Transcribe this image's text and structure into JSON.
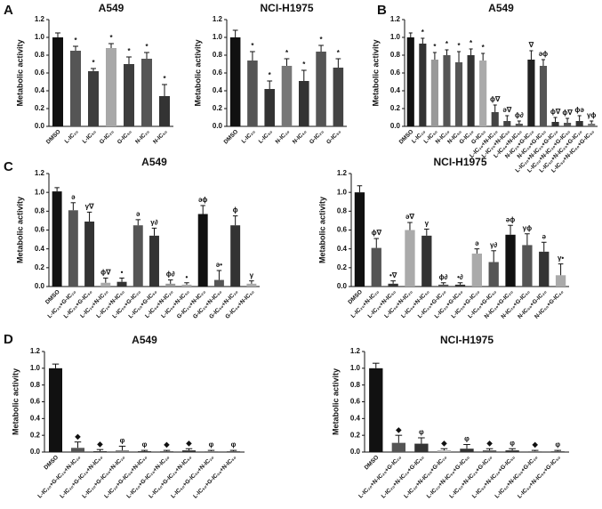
{
  "panel_labels": [
    "A",
    "B",
    "C",
    "D"
  ],
  "chart_data": [
    {
      "type": "bar",
      "title": "A549",
      "ylabel": "Metabolic activity",
      "categories": [
        "DMSO",
        "L-IC₂₀",
        "L-IC₅₀",
        "G-IC₂₀",
        "G-IC₅₀",
        "N-IC₂₀",
        "N-IC₅₀"
      ],
      "values": [
        1.0,
        0.85,
        0.62,
        0.88,
        0.7,
        0.76,
        0.34
      ],
      "errors": [
        0.05,
        0.05,
        0.03,
        0.05,
        0.08,
        0.07,
        0.13
      ],
      "colors": [
        "#111111",
        "#555555",
        "#3d3d3d",
        "#a8a8a8",
        "#3d3d3d",
        "#555555",
        "#333333"
      ],
      "annotations": [
        null,
        "*",
        "*",
        "*",
        "*",
        "*",
        "*"
      ],
      "ylim": [
        0,
        1.2
      ],
      "yticks": [
        {
          "value": 0,
          "label": "0.0"
        },
        0.2,
        0.4,
        0.6,
        0.8,
        {
          "value": 1,
          "label": "1.0"
        },
        1.2
      ]
    },
    {
      "type": "bar",
      "title": "NCI-H1975",
      "ylabel": "Metabolic activity",
      "categories": [
        "DMSO",
        "L-IC₂₀",
        "L-IC₅₀",
        "N-IC₂₀",
        "N-IC₅₀",
        "G-IC₂₀",
        "G-IC₅₀"
      ],
      "values": [
        1.0,
        0.74,
        0.42,
        0.68,
        0.51,
        0.84,
        0.66
      ],
      "errors": [
        0.08,
        0.1,
        0.09,
        0.08,
        0.12,
        0.07,
        0.1
      ],
      "colors": [
        "#111111",
        "#555555",
        "#333333",
        "#777777",
        "#333333",
        "#555555",
        "#444444"
      ],
      "annotations": [
        null,
        "*",
        "*",
        "*",
        "*",
        "*",
        "*"
      ],
      "ylim": [
        0,
        1.2
      ],
      "yticks": [
        {
          "value": 0,
          "label": "0.0"
        },
        0.2,
        0.4,
        0.6,
        0.8,
        {
          "value": 1,
          "label": "1.0"
        },
        1.2
      ]
    },
    {
      "type": "bar",
      "title": "A549",
      "ylabel": "Metabolic activity",
      "categories": [
        "DMSO",
        "L-IC₂₀",
        "L-IC₅₀",
        "N-IC₂₀",
        "N-IC₅₀",
        "G-IC₂₀",
        "G-IC₅₀",
        "L-IC₂₀+N-IC₂₀",
        "L-IC₂₀+N-IC₅₀",
        "L-IC₅₀+N-IC₅₀",
        "N-IC₂₀+G-IC₂₀",
        "N-IC₂₀+G-IC₅₀",
        "L-IC₂₀+N-IC₂₀+G-IC₂₀",
        "L-IC₂₀+N-IC₂₀+G-IC₅₀",
        "L-IC₅₀+N-IC₂₀+G-IC₂₀",
        "L-IC₅₀+N-IC₅₀+G-IC₅₀"
      ],
      "values": [
        1.0,
        0.93,
        0.75,
        0.8,
        0.72,
        0.8,
        0.74,
        0.16,
        0.06,
        0.03,
        0.75,
        0.68,
        0.05,
        0.04,
        0.06,
        0.03
      ],
      "errors": [
        0.05,
        0.06,
        0.08,
        0.06,
        0.12,
        0.07,
        0.08,
        0.08,
        0.06,
        0.03,
        0.1,
        0.07,
        0.05,
        0.05,
        0.06,
        0.03
      ],
      "colors": [
        "#111111",
        "#333333",
        "#999999",
        "#555555",
        "#555555",
        "#333333",
        "#aaaaaa",
        "#444444",
        "#444444",
        "#555555",
        "#222222",
        "#555555",
        "#333333",
        "#555555",
        "#333333",
        "#777777"
      ],
      "annotations": [
        null,
        "*",
        "*",
        "*",
        "*",
        "*",
        "*",
        "ϕ∇",
        "ə∇",
        "ϕ∂",
        "∇",
        "əϕ",
        "ϕ∇",
        "ϕ∇",
        "ϕə",
        "γϕ"
      ],
      "ylim": [
        0,
        1.2
      ],
      "yticks": [
        {
          "value": 0,
          "label": "0.0"
        },
        0.2,
        0.4,
        0.6,
        0.8,
        {
          "value": 1,
          "label": "1.0"
        },
        1.2
      ]
    },
    {
      "type": "bar",
      "title": "A549",
      "ylabel": "Metabolic activity",
      "categories": [
        "DMSO",
        "L-IC₂₀+G-IC₂₀",
        "L-IC₂₀+G-IC₅₀",
        "L-IC₂₀+N-IC₂₀",
        "L-IC₂₀+N-IC₅₀",
        "L-IC₅₀+G-IC₂₀",
        "L-IC₅₀+G-IC₅₀",
        "L-IC₅₀+N-IC₂₀",
        "L-IC₅₀+N-IC₅₀",
        "G-IC₂₀+N-IC₂₀",
        "G-IC₂₀+N-IC₅₀",
        "G-IC₅₀+N-IC₂₀",
        "G-IC₅₀+N-IC₅₀"
      ],
      "values": [
        1.01,
        0.81,
        0.69,
        0.04,
        0.05,
        0.65,
        0.54,
        0.03,
        0.02,
        0.77,
        0.07,
        0.65,
        0.03
      ],
      "errors": [
        0.04,
        0.08,
        0.1,
        0.05,
        0.04,
        0.06,
        0.08,
        0.04,
        0.02,
        0.09,
        0.1,
        0.1,
        0.03
      ],
      "colors": [
        "#111111",
        "#555555",
        "#333333",
        "#aaaaaa",
        "#333333",
        "#555555",
        "#333333",
        "#999999",
        "#aaaaaa",
        "#111111",
        "#555555",
        "#333333",
        "#aaaaaa"
      ],
      "annotations": [
        null,
        "ə",
        "γ∇",
        "ϕ∇",
        "•",
        "ə",
        "γ∂",
        "ϕ∂",
        "•",
        "əϕ",
        "ə•",
        "ϕ",
        "γ"
      ],
      "ylim": [
        0,
        1.2
      ],
      "yticks": [
        {
          "value": 0,
          "label": "0.0"
        },
        0.2,
        0.4,
        0.6,
        0.8,
        {
          "value": 1,
          "label": "1.0"
        },
        1.2
      ]
    },
    {
      "type": "bar",
      "title": "NCI-H1975",
      "ylabel": "Metabolic activity",
      "categories": [
        "DMSO",
        "L-IC₂₀+N-IC₂₀",
        "L-IC₂₀+N-IC₅₀",
        "L-IC₅₀+N-IC₂₀",
        "L-IC₅₀+N-IC₅₀",
        "L-IC₂₀+G-IC₂₀",
        "L-IC₂₀+G-IC₅₀",
        "L-IC₅₀+G-IC₂₀",
        "L-IC₅₀+G-IC₅₀",
        "N-IC₂₀+G-IC₂₀",
        "N-IC₂₀+G-IC₅₀",
        "N-IC₅₀+G-IC₂₀",
        "N-IC₅₀+G-IC₅₀"
      ],
      "values": [
        1.0,
        0.41,
        0.03,
        0.6,
        0.54,
        0.02,
        0.02,
        0.35,
        0.26,
        0.55,
        0.44,
        0.37,
        0.12
      ],
      "errors": [
        0.07,
        0.1,
        0.03,
        0.08,
        0.07,
        0.02,
        0.02,
        0.05,
        0.12,
        0.1,
        0.12,
        0.1,
        0.12
      ],
      "colors": [
        "#111111",
        "#555555",
        "#333333",
        "#aaaaaa",
        "#333333",
        "#555555",
        "#333333",
        "#aaaaaa",
        "#555555",
        "#111111",
        "#555555",
        "#333333",
        "#aaaaaa"
      ],
      "annotations": [
        null,
        "ϕ∇",
        "•∇",
        "ə∇",
        "γ",
        "ϕ∂",
        "•∂",
        "ə",
        "γ∂",
        "əϕ",
        "γϕ",
        "ə",
        "γ•"
      ],
      "ylim": [
        0,
        1.2
      ],
      "yticks": [
        {
          "value": 0,
          "label": "0.0"
        },
        0.2,
        0.4,
        0.6,
        0.8,
        {
          "value": 1,
          "label": "1.0"
        },
        1.2
      ]
    },
    {
      "type": "bar",
      "title": "A549",
      "ylabel": "Metabolic activity",
      "categories": [
        "DMSO",
        "L-IC₂₀+G-IC₂₀+N-IC₂₀",
        "L-IC₂₀+G-IC₂₀+N-IC₅₀",
        "L-IC₂₀+G-IC₅₀+N-IC₂₀",
        "L-IC₂₀+G-IC₅₀+N-IC₅₀",
        "L-IC₅₀+G-IC₂₀+N-IC₂₀",
        "L-IC₅₀+G-IC₂₀+N-IC₅₀",
        "L-IC₅₀+G-IC₅₀+N-IC₂₀",
        "L-IC₅₀+G-IC₅₀+N-IC₅₀"
      ],
      "values": [
        1.0,
        0.05,
        0.01,
        0.02,
        0.01,
        0.01,
        0.02,
        0.01,
        0.01
      ],
      "errors": [
        0.05,
        0.07,
        0.02,
        0.05,
        0.01,
        0.01,
        0.02,
        0.01,
        0.01
      ],
      "colors": [
        "#111111",
        "#555555",
        "#333333",
        "#777777",
        "#333333",
        "#555555",
        "#333333",
        "#777777",
        "#555555"
      ],
      "annotations": [
        null,
        "◆",
        "◆",
        "φ",
        "φ",
        "◆",
        "◆",
        "φ",
        "φ"
      ],
      "ylim": [
        0,
        1.2
      ],
      "yticks": [
        {
          "value": 0,
          "label": "0.0"
        },
        0.2,
        0.4,
        0.6,
        0.8,
        {
          "value": 1,
          "label": "1.0"
        },
        1.2
      ]
    },
    {
      "type": "bar",
      "title": "NCI-H1975",
      "ylabel": "Metabolic activity",
      "categories": [
        "DMSO",
        "L-IC₂₀+N-IC₂₀+G-IC₂₀",
        "L-IC₂₀+N-IC₂₀+G-IC₅₀",
        "L-IC₂₀+N-IC₅₀+G-IC₂₀",
        "L-IC₂₀+N-IC₅₀+G-IC₅₀",
        "L-IC₅₀+N-IC₂₀+G-IC₂₀",
        "L-IC₅₀+N-IC₂₀+G-IC₅₀",
        "L-IC₅₀+N-IC₅₀+G-IC₂₀",
        "L-IC₅₀+N-IC₅₀+G-IC₅₀"
      ],
      "values": [
        1.0,
        0.11,
        0.1,
        0.02,
        0.04,
        0.02,
        0.02,
        0.01,
        0.01
      ],
      "errors": [
        0.06,
        0.09,
        0.07,
        0.02,
        0.05,
        0.02,
        0.02,
        0.01,
        0.01
      ],
      "colors": [
        "#111111",
        "#555555",
        "#333333",
        "#aaaaaa",
        "#333333",
        "#555555",
        "#333333",
        "#777777",
        "#555555"
      ],
      "annotations": [
        null,
        "◆",
        "φ",
        "◆",
        "φ",
        "◆",
        "φ",
        "◆",
        "φ"
      ],
      "ylim": [
        0,
        1.2
      ],
      "yticks": [
        {
          "value": 0,
          "label": "0.0"
        },
        0.2,
        0.4,
        0.6,
        0.8,
        {
          "value": 1,
          "label": "1.0"
        },
        1.2
      ]
    }
  ]
}
